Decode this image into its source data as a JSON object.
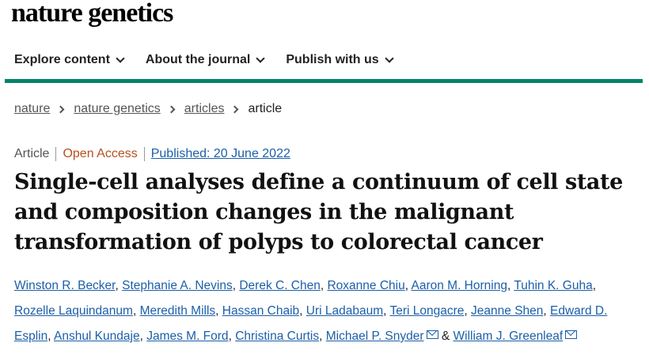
{
  "brand": {
    "masthead": "nature genetics"
  },
  "nav": {
    "items": [
      {
        "label": "Explore content"
      },
      {
        "label": "About the journal"
      },
      {
        "label": "Publish with us"
      }
    ]
  },
  "breadcrumb": {
    "items": [
      "nature",
      "nature genetics",
      "articles"
    ],
    "current": "article"
  },
  "meta": {
    "type": "Article",
    "access": "Open Access",
    "published": "Published: 20 June 2022"
  },
  "colors": {
    "accent_rule": "#00846b",
    "link": "#1c5fa8",
    "open_access": "#b6501f"
  },
  "article": {
    "title": "Single-cell analyses define a continuum of cell state and composition changes in the malignant transformation of polyps to colorectal cancer"
  },
  "authors": {
    "list": [
      "Winston R. Becker",
      "Stephanie A. Nevins",
      "Derek C. Chen",
      "Roxanne Chiu",
      "Aaron M. Horning",
      "Tuhin K. Guha",
      "Rozelle Laquindanum",
      "Meredith Mills",
      "Hassan Chaib",
      "Uri Ladabaum",
      "Teri Longacre",
      "Jeanne Shen",
      "Edward D. Esplin",
      "Anshul Kundaje",
      "James M. Ford",
      "Christina Curtis",
      "Michael P. Snyder",
      "William J. Greenleaf"
    ],
    "separator": ", ",
    "conjunction": "&",
    "mail_icon": "envelope-icon"
  }
}
